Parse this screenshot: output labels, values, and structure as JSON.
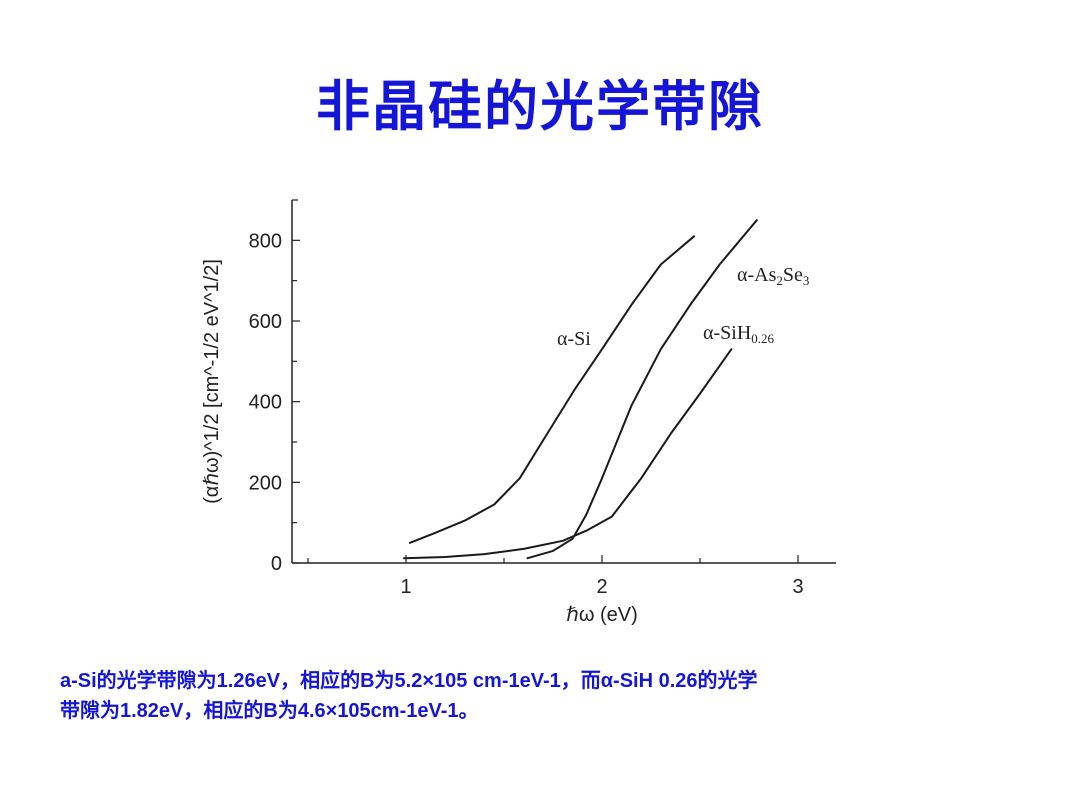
{
  "title": "非晶硅的光学带隙",
  "chart_data": {
    "type": "line",
    "xlabel": "ℏω (eV)",
    "ylabel": "(αℏω)^1/2 [cm^-1/2 eV^1/2]",
    "xlim": [
      0.5,
      3.2
    ],
    "ylim": [
      0,
      900
    ],
    "xticks": [
      1,
      2,
      3
    ],
    "yticks": [
      0,
      200,
      400,
      600,
      800
    ],
    "grid": false,
    "legend": "inline labels",
    "series": [
      {
        "name": "α-Si",
        "x": [
          1.02,
          1.15,
          1.3,
          1.45,
          1.58,
          1.72,
          1.86,
          2.0,
          2.15,
          2.3,
          2.47
        ],
        "y": [
          50,
          75,
          105,
          145,
          210,
          320,
          430,
          530,
          640,
          740,
          810
        ]
      },
      {
        "name": "α-As2Se3",
        "x": [
          1.62,
          1.75,
          1.85,
          1.92,
          2.0,
          2.15,
          2.3,
          2.45,
          2.6,
          2.79
        ],
        "y": [
          12,
          30,
          60,
          120,
          210,
          390,
          530,
          640,
          740,
          850
        ]
      },
      {
        "name": "α-SiH0.26",
        "x": [
          0.99,
          1.2,
          1.4,
          1.6,
          1.8,
          1.92,
          2.05,
          2.2,
          2.35,
          2.5,
          2.66
        ],
        "y": [
          12,
          15,
          22,
          35,
          55,
          80,
          115,
          210,
          320,
          420,
          530
        ]
      }
    ],
    "series_labels": [
      {
        "main": "α-Si",
        "sub": "",
        "sub_tail": ""
      },
      {
        "main": "α-As",
        "sub": "2",
        "mid": "Se",
        "sub2": "3"
      },
      {
        "main": "α-SiH",
        "sub": "0.26",
        "mid": "",
        "sub2": ""
      }
    ]
  },
  "caption": {
    "line1": "a-Si的光学带隙为1.26eV，相应的B为5.2×105 cm-1eV-1，而α-SiH 0.26的光学",
    "line2": "带隙为1.82eV，相应的B为4.6×105cm-1eV-1。"
  }
}
